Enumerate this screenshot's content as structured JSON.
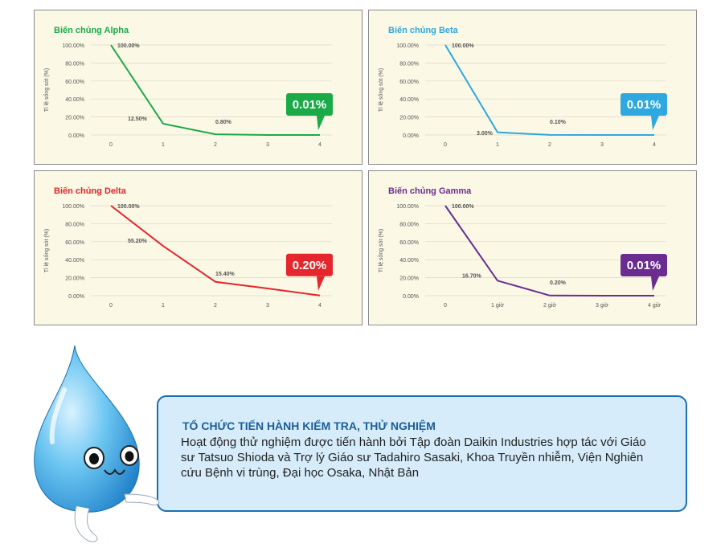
{
  "colors": {
    "alpha": "#1aaa48",
    "beta": "#2ea8df",
    "delta": "#e5262c",
    "gamma": "#6a2d8f",
    "box_border": "#1a6fb0",
    "box_bg": "#d6ecfa",
    "heading": "#1b5d9a"
  },
  "chart_data": [
    {
      "type": "line",
      "title": "Biến chủng Alpha",
      "ylabel": "Tỉ lệ sống sót (%)",
      "xlabel": "",
      "x": [
        "0",
        "1",
        "2",
        "3",
        "4"
      ],
      "y": [
        100,
        12.5,
        0.8,
        0.05,
        0.01
      ],
      "yticks": [
        "100.00%",
        "80.00%",
        "60.00%",
        "40.00%",
        "20.00%",
        "0.00%"
      ],
      "ylim": [
        0,
        100
      ],
      "point_labels": [
        "100.00%",
        "12.50%",
        "0.80%",
        "",
        ""
      ],
      "callout": "0.01%",
      "grid": true
    },
    {
      "type": "line",
      "title": "Biến chủng Beta",
      "ylabel": "Tỉ lệ sống sót (%)",
      "xlabel": "",
      "x": [
        "0",
        "1",
        "2",
        "3",
        "4"
      ],
      "y": [
        100,
        3,
        0.1,
        0.05,
        0.01
      ],
      "yticks": [
        "100.00%",
        "80.00%",
        "60.00%",
        "40.00%",
        "20.00%",
        "0.00%"
      ],
      "ylim": [
        0,
        100
      ],
      "point_labels": [
        "100.00%",
        "3.00%",
        "0.10%",
        "",
        ""
      ],
      "callout": "0.01%",
      "grid": true
    },
    {
      "type": "line",
      "title": "Biến chủng Delta",
      "ylabel": "Tỉ lệ sống sót (%)",
      "xlabel": "",
      "x": [
        "0",
        "1",
        "2",
        "3",
        "4"
      ],
      "y": [
        100,
        55.2,
        15.4,
        8,
        0.2
      ],
      "yticks": [
        "100.00%",
        "80.00%",
        "60.00%",
        "40.00%",
        "20.00%",
        "0.00%"
      ],
      "ylim": [
        0,
        100
      ],
      "point_labels": [
        "100.00%",
        "55.20%",
        "15.40%",
        "",
        ""
      ],
      "callout": "0.20%",
      "grid": true
    },
    {
      "type": "line",
      "title": "Biến chủng Gamma",
      "ylabel": "Tỉ lệ sống sót (%)",
      "xlabel": "",
      "x": [
        "0",
        "1 giờ",
        "2 giờ",
        "3 giờ",
        "4 giờ"
      ],
      "y": [
        100,
        16.7,
        0.2,
        0.05,
        0.01
      ],
      "yticks": [
        "100.00%",
        "80.00%",
        "60.00%",
        "40.00%",
        "20.00%",
        "0.00%"
      ],
      "ylim": [
        0,
        100
      ],
      "point_labels": [
        "100.00%",
        "16.70%",
        "0.20%",
        "",
        ""
      ],
      "callout": "0.01%",
      "grid": true
    }
  ],
  "info": {
    "title": "TỔ CHỨC TIẾN HÀNH KIỂM TRA, THỬ NGHIỆM",
    "body": "Hoạt động thử nghiệm được tiến hành bởi Tập đoàn Daikin Industries hợp tác với Giáo sư Tatsuo Shioda và Trợ lý Giáo sư Tadahiro Sasaki, Khoa Truyền nhiễm, Viện Nghiên cứu Bệnh vi trùng, Đại học Osaka, Nhật Bản"
  },
  "mascot": {
    "icon": "water-drop-mascot-icon"
  }
}
